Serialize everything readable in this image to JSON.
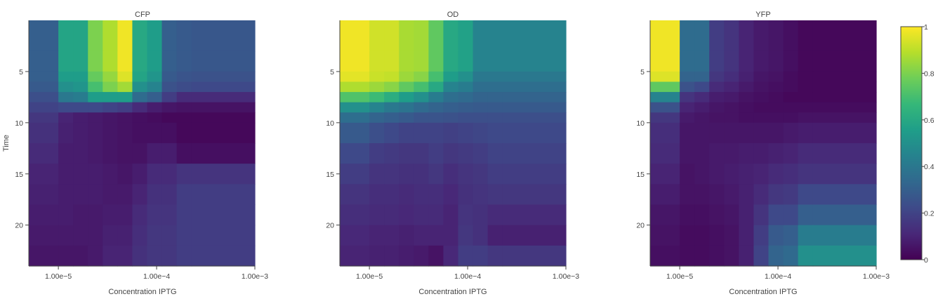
{
  "chart_data": {
    "type": "heatmap",
    "xlabel": "Concentration IPTG",
    "ylabel": "Time",
    "x_scale": "log",
    "xlim": [
      5e-06,
      0.001
    ],
    "ylim": [
      24,
      0
    ],
    "x_columns": [
      5e-06,
      1e-05,
      1.414e-05,
      2e-05,
      2.828e-05,
      4e-05,
      5.657e-05,
      8e-05,
      0.0001131,
      0.00016,
      0.0002263,
      0.001
    ],
    "x_ticks": [
      1e-05,
      0.0001,
      0.001
    ],
    "x_tick_labels": [
      "1.00e−5",
      "1.00e−4",
      "1.00e−3"
    ],
    "y_ticks": [
      5,
      10,
      15,
      20
    ],
    "y_tick_labels": [
      "5",
      "10",
      "15",
      "20"
    ],
    "time_rows": [
      0,
      3,
      5,
      6,
      7,
      8,
      9,
      10,
      12,
      14,
      16,
      18,
      20,
      22,
      24
    ],
    "colorscale": "viridis",
    "colorbar": {
      "min": 0,
      "max": 1,
      "ticks": [
        0,
        0.2,
        0.4,
        0.6,
        0.8,
        1
      ],
      "tick_labels": [
        "0",
        "0.2",
        "0.4",
        "0.6",
        "0.8",
        "1"
      ]
    },
    "panels": [
      {
        "title": "CFP",
        "z": [
          [
            0.3,
            0.58,
            0.58,
            0.8,
            0.88,
            0.98,
            0.6,
            0.55,
            0.3,
            0.28,
            0.27
          ],
          [
            0.3,
            0.58,
            0.58,
            0.8,
            0.88,
            0.98,
            0.6,
            0.55,
            0.3,
            0.28,
            0.27
          ],
          [
            0.3,
            0.55,
            0.55,
            0.76,
            0.84,
            0.95,
            0.58,
            0.52,
            0.28,
            0.26,
            0.25
          ],
          [
            0.28,
            0.5,
            0.52,
            0.7,
            0.8,
            0.86,
            0.5,
            0.45,
            0.25,
            0.23,
            0.22
          ],
          [
            0.24,
            0.4,
            0.42,
            0.55,
            0.55,
            0.55,
            0.35,
            0.3,
            0.18,
            0.12,
            0.12
          ],
          [
            0.2,
            0.22,
            0.22,
            0.22,
            0.2,
            0.18,
            0.12,
            0.08,
            0.06,
            0.05,
            0.05
          ],
          [
            0.16,
            0.1,
            0.08,
            0.07,
            0.06,
            0.05,
            0.04,
            0.03,
            0.02,
            0.02,
            0.02
          ],
          [
            0.14,
            0.09,
            0.08,
            0.07,
            0.06,
            0.05,
            0.04,
            0.04,
            0.04,
            0.02,
            0.02
          ],
          [
            0.12,
            0.08,
            0.08,
            0.07,
            0.06,
            0.05,
            0.05,
            0.08,
            0.08,
            0.04,
            0.04
          ],
          [
            0.1,
            0.08,
            0.08,
            0.08,
            0.07,
            0.06,
            0.08,
            0.12,
            0.12,
            0.15,
            0.15
          ],
          [
            0.09,
            0.08,
            0.08,
            0.08,
            0.07,
            0.07,
            0.1,
            0.14,
            0.14,
            0.18,
            0.18
          ],
          [
            0.08,
            0.08,
            0.07,
            0.07,
            0.08,
            0.08,
            0.12,
            0.15,
            0.15,
            0.18,
            0.18
          ],
          [
            0.07,
            0.07,
            0.07,
            0.07,
            0.09,
            0.09,
            0.13,
            0.16,
            0.16,
            0.18,
            0.18
          ],
          [
            0.06,
            0.06,
            0.06,
            0.07,
            0.1,
            0.1,
            0.14,
            0.16,
            0.16,
            0.18,
            0.18
          ],
          [
            0.06,
            0.06,
            0.06,
            0.07,
            0.1,
            0.1,
            0.14,
            0.16,
            0.16,
            0.18,
            0.18
          ]
        ]
      },
      {
        "title": "OD",
        "z": [
          [
            0.98,
            0.93,
            0.93,
            0.87,
            0.86,
            0.75,
            0.6,
            0.57,
            0.45,
            0.45,
            0.45
          ],
          [
            0.98,
            0.93,
            0.93,
            0.87,
            0.86,
            0.75,
            0.6,
            0.57,
            0.45,
            0.45,
            0.45
          ],
          [
            0.96,
            0.92,
            0.91,
            0.85,
            0.82,
            0.7,
            0.55,
            0.5,
            0.4,
            0.4,
            0.4
          ],
          [
            0.88,
            0.85,
            0.82,
            0.75,
            0.7,
            0.6,
            0.45,
            0.42,
            0.36,
            0.36,
            0.36
          ],
          [
            0.72,
            0.68,
            0.62,
            0.55,
            0.5,
            0.42,
            0.36,
            0.34,
            0.32,
            0.32,
            0.32
          ],
          [
            0.5,
            0.45,
            0.4,
            0.38,
            0.34,
            0.32,
            0.3,
            0.29,
            0.28,
            0.28,
            0.28
          ],
          [
            0.36,
            0.32,
            0.3,
            0.28,
            0.26,
            0.26,
            0.25,
            0.24,
            0.24,
            0.24,
            0.24
          ],
          [
            0.28,
            0.24,
            0.22,
            0.2,
            0.2,
            0.2,
            0.19,
            0.2,
            0.21,
            0.22,
            0.22
          ],
          [
            0.22,
            0.18,
            0.17,
            0.16,
            0.16,
            0.18,
            0.16,
            0.17,
            0.18,
            0.2,
            0.2
          ],
          [
            0.18,
            0.15,
            0.15,
            0.14,
            0.14,
            0.16,
            0.13,
            0.15,
            0.16,
            0.18,
            0.18
          ],
          [
            0.15,
            0.13,
            0.13,
            0.12,
            0.13,
            0.13,
            0.11,
            0.14,
            0.15,
            0.16,
            0.16
          ],
          [
            0.13,
            0.12,
            0.12,
            0.11,
            0.12,
            0.12,
            0.1,
            0.15,
            0.14,
            0.12,
            0.12
          ],
          [
            0.11,
            0.1,
            0.1,
            0.09,
            0.1,
            0.1,
            0.1,
            0.16,
            0.14,
            0.09,
            0.09
          ],
          [
            0.1,
            0.09,
            0.09,
            0.08,
            0.07,
            0.05,
            0.11,
            0.18,
            0.18,
            0.16,
            0.16
          ],
          [
            0.1,
            0.09,
            0.09,
            0.08,
            0.07,
            0.05,
            0.11,
            0.18,
            0.18,
            0.16,
            0.16
          ]
        ]
      },
      {
        "title": "YFP",
        "z": [
          [
            0.98,
            0.35,
            0.35,
            0.18,
            0.15,
            0.1,
            0.07,
            0.06,
            0.04,
            0.02,
            0.02
          ],
          [
            0.98,
            0.35,
            0.35,
            0.18,
            0.15,
            0.1,
            0.07,
            0.06,
            0.04,
            0.02,
            0.02
          ],
          [
            0.95,
            0.32,
            0.32,
            0.16,
            0.13,
            0.09,
            0.06,
            0.05,
            0.03,
            0.02,
            0.02
          ],
          [
            0.75,
            0.25,
            0.22,
            0.12,
            0.1,
            0.07,
            0.05,
            0.04,
            0.03,
            0.02,
            0.02
          ],
          [
            0.45,
            0.15,
            0.12,
            0.08,
            0.07,
            0.05,
            0.04,
            0.03,
            0.02,
            0.02,
            0.02
          ],
          [
            0.25,
            0.1,
            0.08,
            0.06,
            0.05,
            0.04,
            0.03,
            0.03,
            0.03,
            0.03,
            0.03
          ],
          [
            0.16,
            0.07,
            0.06,
            0.05,
            0.05,
            0.04,
            0.04,
            0.04,
            0.04,
            0.05,
            0.05
          ],
          [
            0.13,
            0.06,
            0.06,
            0.06,
            0.06,
            0.06,
            0.06,
            0.06,
            0.07,
            0.08,
            0.08
          ],
          [
            0.12,
            0.06,
            0.06,
            0.07,
            0.07,
            0.08,
            0.08,
            0.09,
            0.1,
            0.12,
            0.12
          ],
          [
            0.1,
            0.05,
            0.06,
            0.07,
            0.08,
            0.09,
            0.1,
            0.12,
            0.13,
            0.15,
            0.15
          ],
          [
            0.08,
            0.05,
            0.05,
            0.06,
            0.07,
            0.09,
            0.12,
            0.16,
            0.17,
            0.22,
            0.22
          ],
          [
            0.06,
            0.04,
            0.04,
            0.05,
            0.06,
            0.09,
            0.15,
            0.22,
            0.22,
            0.3,
            0.3
          ],
          [
            0.05,
            0.03,
            0.03,
            0.04,
            0.05,
            0.09,
            0.18,
            0.28,
            0.3,
            0.42,
            0.42
          ],
          [
            0.04,
            0.03,
            0.03,
            0.04,
            0.05,
            0.09,
            0.2,
            0.32,
            0.34,
            0.5,
            0.5
          ],
          [
            0.04,
            0.03,
            0.03,
            0.04,
            0.05,
            0.09,
            0.2,
            0.32,
            0.34,
            0.5,
            0.5
          ]
        ]
      }
    ]
  }
}
